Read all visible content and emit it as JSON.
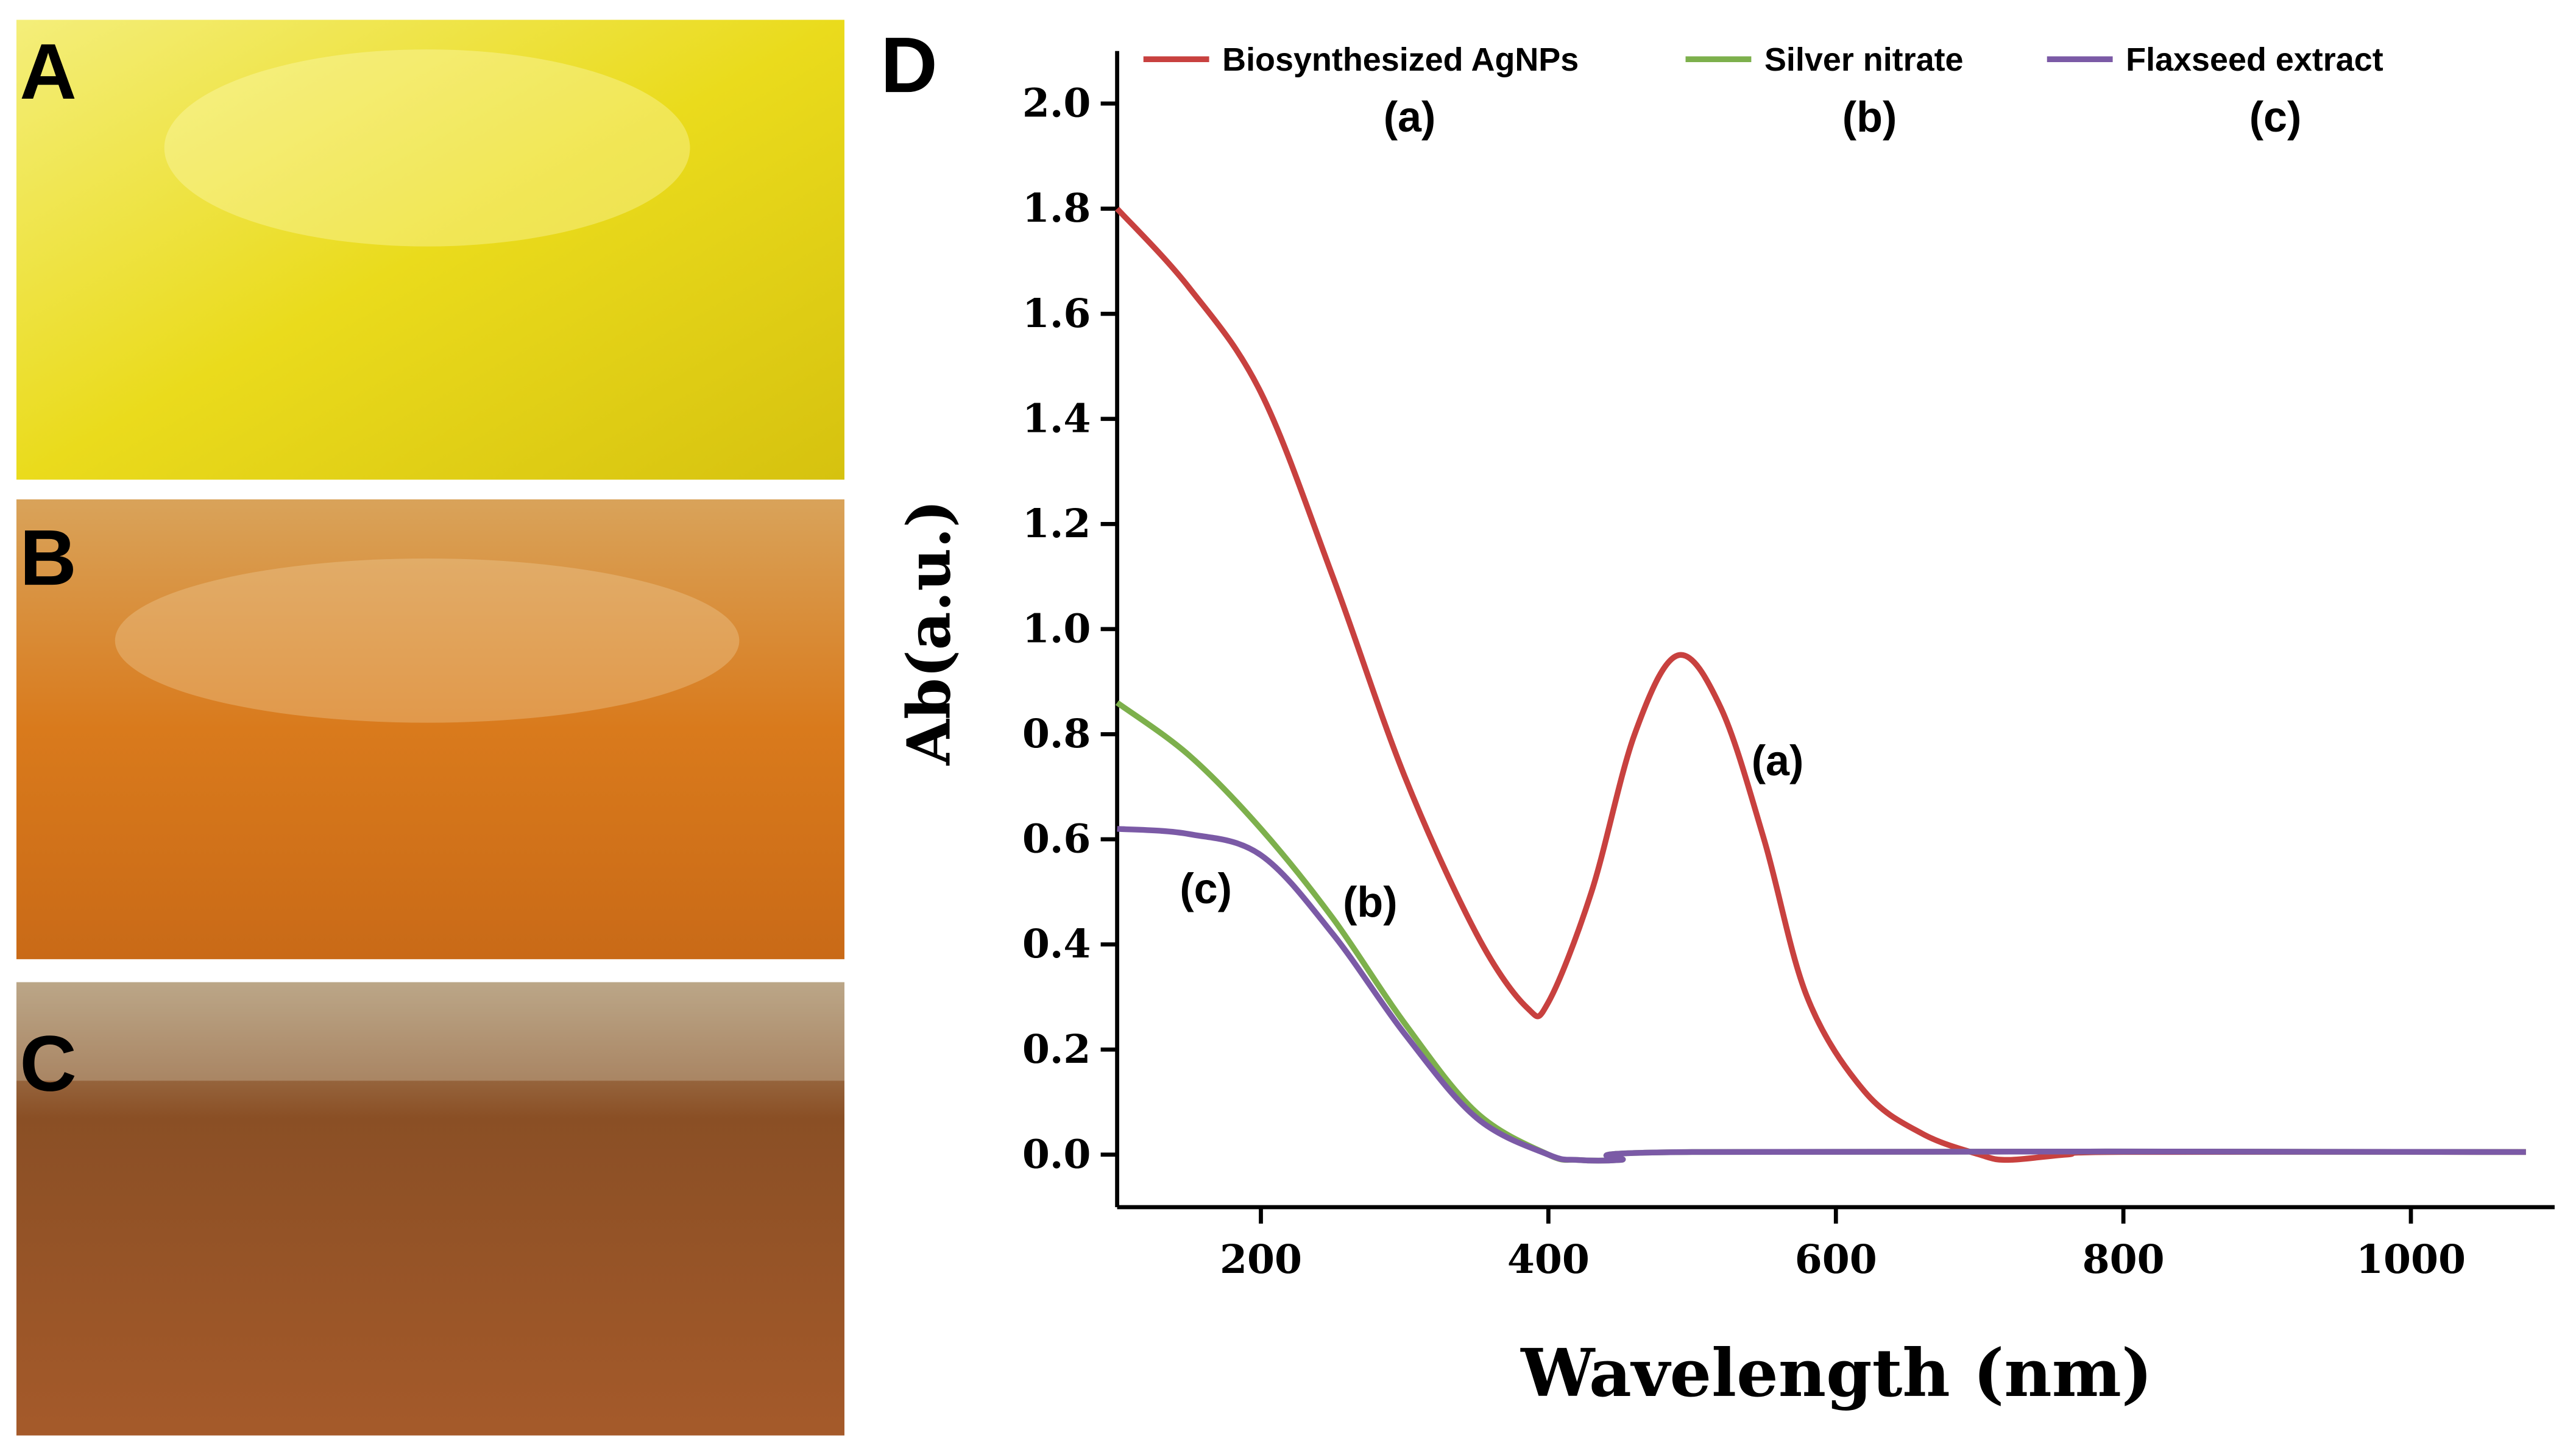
{
  "panels": [
    "A",
    "B",
    "C"
  ],
  "chart_data": {
    "type": "line",
    "panel": "D",
    "xlabel": "Wavelength (nm)",
    "ylabel": "Ab(a.u.)",
    "xlim": [
      100,
      1100
    ],
    "xticks": [
      200,
      400,
      600,
      800,
      1000
    ],
    "ylim": [
      -0.1,
      2.1
    ],
    "yticks": [
      {
        "value": 0,
        "label": "0.0"
      },
      0.2,
      0.4,
      0.6,
      0.8,
      {
        "value": 1,
        "label": "1.0"
      },
      1.2,
      1.4,
      1.6,
      1.8,
      {
        "value": 2,
        "label": "2.0"
      }
    ],
    "legend_tags": [
      "(a)",
      "(b)",
      "(c)"
    ],
    "annotations": [
      "(a)",
      "(b)",
      "(c)"
    ],
    "series": [
      {
        "name": "Biosynthesized AgNPs",
        "color": "#c8413f",
        "x": [
          100,
          150,
          200,
          250,
          300,
          350,
          385,
          400,
          430,
          460,
          490,
          520,
          550,
          580,
          620,
          660,
          700,
          720,
          760,
          800,
          1080
        ],
        "values": [
          1.8,
          1.65,
          1.45,
          1.1,
          0.72,
          0.42,
          0.28,
          0.29,
          0.5,
          0.8,
          0.95,
          0.85,
          0.6,
          0.3,
          0.12,
          0.04,
          0.0,
          -0.01,
          0.0,
          0.005,
          0.005
        ]
      },
      {
        "name": "Silver nitrate",
        "color": "#7db04c",
        "x": [
          100,
          150,
          200,
          250,
          300,
          350,
          400,
          420,
          450,
          500,
          1080
        ],
        "values": [
          0.86,
          0.76,
          0.62,
          0.45,
          0.25,
          0.08,
          0.0,
          -0.01,
          -0.01,
          0.005,
          0.005
        ]
      },
      {
        "name": "Flaxseed extract",
        "color": "#7b5aa6",
        "x": [
          100,
          150,
          200,
          250,
          300,
          350,
          400,
          420,
          450,
          500,
          1080
        ],
        "values": [
          0.62,
          0.61,
          0.57,
          0.42,
          0.23,
          0.07,
          0.0,
          -0.01,
          -0.01,
          0.005,
          0.005
        ]
      }
    ]
  }
}
